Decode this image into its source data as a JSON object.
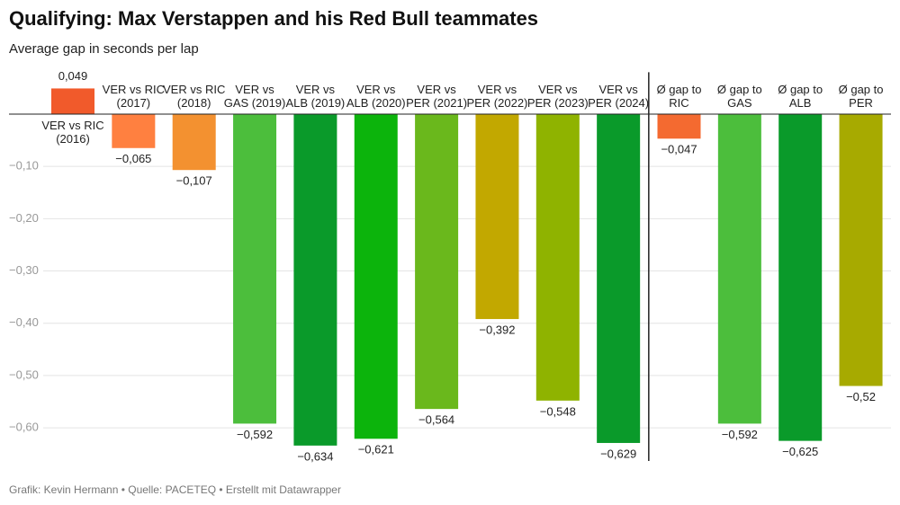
{
  "chart_data": {
    "type": "bar",
    "title": "Qualifying: Max Verstappen and his Red Bull teammates",
    "subtitle": "Average gap in seconds per lap",
    "footer": "Grafik: Kevin Hermann • Quelle: PACETEQ • Erstellt mit Datawrapper",
    "categories": [
      "VER vs RIC (2016)",
      "VER vs RIC (2017)",
      "VER vs RIC (2018)",
      "VER vs GAS (2019)",
      "VER vs ALB (2019)",
      "VER vs ALB (2020)",
      "VER vs PER (2021)",
      "VER vs PER (2022)",
      "VER vs PER (2023)",
      "VER vs PER (2024)",
      "Ø gap to RIC",
      "Ø gap to GAS",
      "Ø gap to ALB",
      "Ø gap to PER"
    ],
    "values": [
      0.049,
      -0.065,
      -0.107,
      -0.592,
      -0.634,
      -0.621,
      -0.564,
      -0.392,
      -0.548,
      -0.629,
      -0.047,
      -0.592,
      -0.625,
      -0.52
    ],
    "value_labels": [
      "0,049",
      "−0,065",
      "−0,107",
      "−0,592",
      "−0,634",
      "−0,621",
      "−0,564",
      "−0,392",
      "−0,548",
      "−0,629",
      "−0,047",
      "−0,592",
      "−0,625",
      "−0,52"
    ],
    "colors": [
      "#f15a2b",
      "#ff8040",
      "#f39130",
      "#4cbe3c",
      "#0a9a2a",
      "#0cb40c",
      "#6ab81c",
      "#c2a800",
      "#8fb300",
      "#0a9a2a",
      "#f46a30",
      "#4cbe3c",
      "#0a9a2a",
      "#a7aa00"
    ],
    "ylim": [
      -0.66,
      0.08
    ],
    "yticks": [
      {
        "value": -0.1,
        "label": "−0,10"
      },
      {
        "value": -0.2,
        "label": "−0,20"
      },
      {
        "value": -0.3,
        "label": "−0,30"
      },
      {
        "value": -0.4,
        "label": "−0,40"
      },
      {
        "value": -0.5,
        "label": "−0,50"
      },
      {
        "value": -0.6,
        "label": "−0,60"
      }
    ],
    "grid": true
  }
}
